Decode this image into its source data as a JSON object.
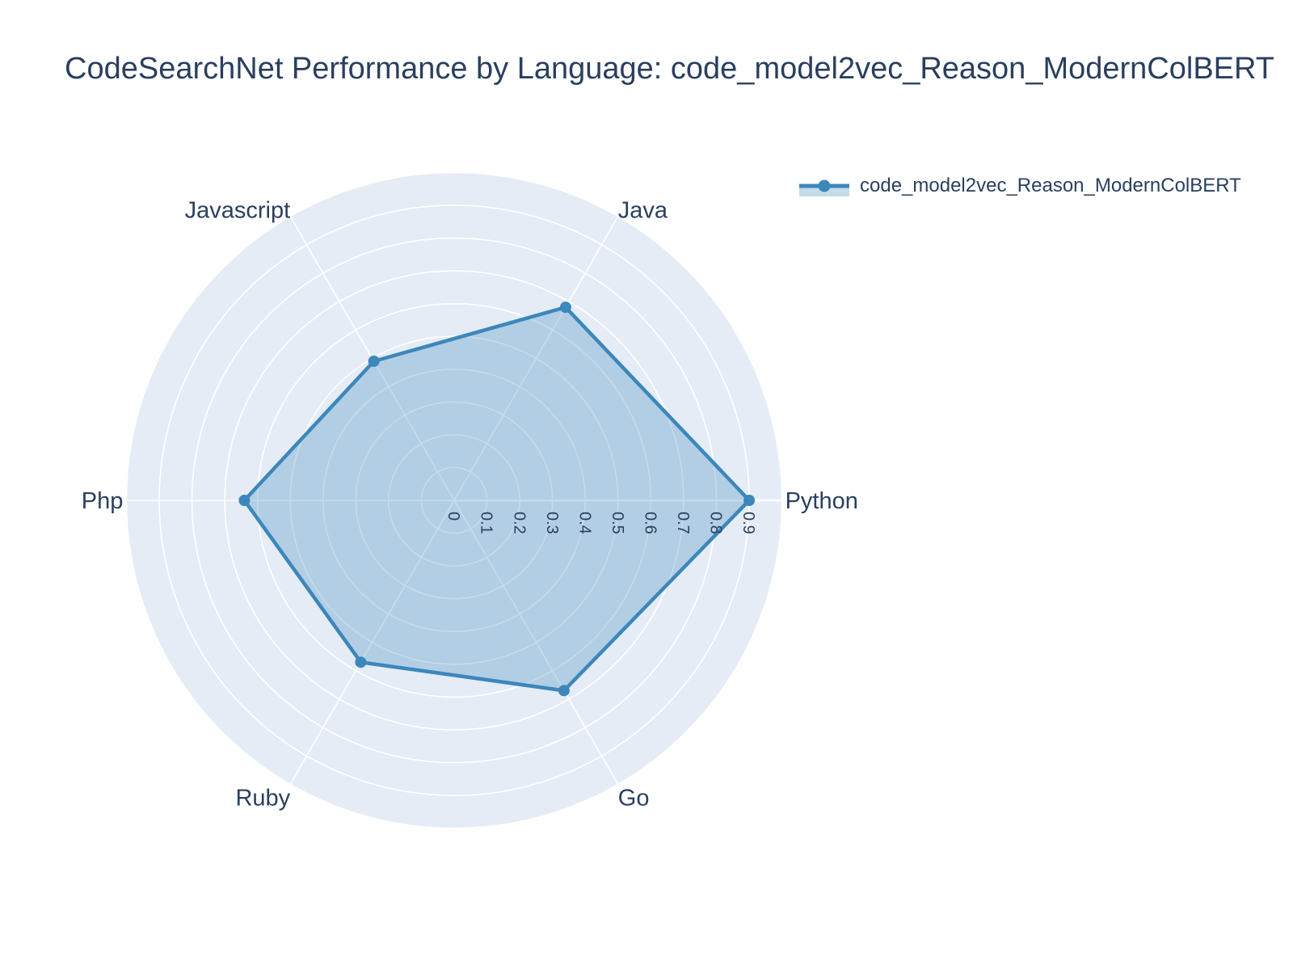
{
  "title": "CodeSearchNet Performance by Language: code_model2vec_Reason_ModernColBERT",
  "legend": {
    "label": "code_model2vec_Reason_ModernColBERT"
  },
  "colors": {
    "text": "#2a3f5f",
    "polar_background": "#e5ecf6",
    "grid": "#ffffff",
    "line": "#3c87bb",
    "fill": "rgba(60,135,187,0.30)"
  },
  "chart_data": {
    "type": "radar",
    "title": "CodeSearchNet Performance by Language: code_model2vec_Reason_ModernColBERT",
    "categories": [
      "Python",
      "Java",
      "Javascript",
      "Php",
      "Ruby",
      "Go"
    ],
    "series": [
      {
        "name": "code_model2vec_Reason_ModernColBERT",
        "values": [
          0.9,
          0.68,
          0.49,
          0.64,
          0.57,
          0.67
        ]
      }
    ],
    "radial_tick_labels": [
      "0",
      "0.1",
      "0.2",
      "0.3",
      "0.4",
      "0.5",
      "0.6",
      "0.7",
      "0.8",
      "0.9"
    ],
    "radial_tick_values": [
      0,
      0.1,
      0.2,
      0.3,
      0.4,
      0.5,
      0.6,
      0.7,
      0.8,
      0.9
    ],
    "radial_range": [
      0,
      1.0
    ],
    "angle_start_deg": 0,
    "angle_direction": "counterclockwise",
    "grid": true,
    "legend_position": "top-right"
  }
}
